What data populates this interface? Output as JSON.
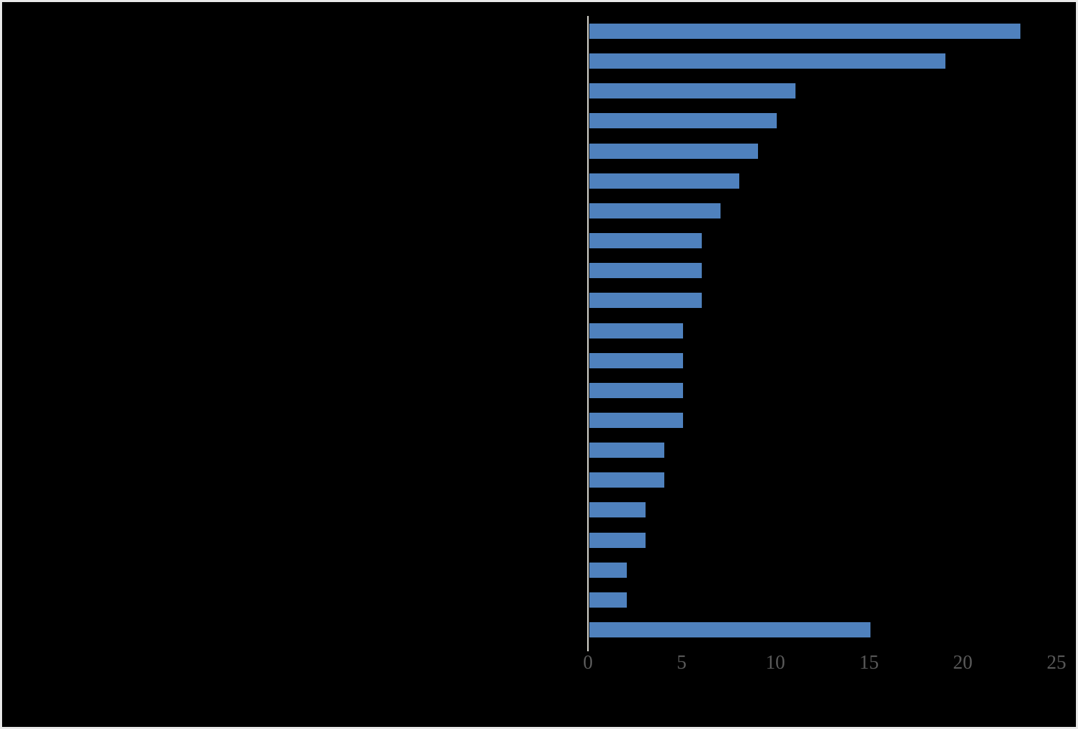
{
  "chart_data": {
    "type": "bar",
    "orientation": "horizontal",
    "values": [
      23,
      19,
      11,
      10,
      9,
      8,
      7,
      6,
      6,
      6,
      5,
      5,
      5,
      5,
      4,
      4,
      3,
      3,
      2,
      2,
      15
    ],
    "categories": [
      "",
      "",
      "",
      "",
      "",
      "",
      "",
      "",
      "",
      "",
      "",
      "",
      "",
      "",
      "",
      "",
      "",
      "",
      "",
      "",
      ""
    ],
    "categories_note": "category labels not visible (black-on-black background)",
    "xlim": [
      0,
      25
    ],
    "xticks": [
      0,
      5,
      10,
      15,
      20,
      25
    ],
    "grid": false,
    "legend": false,
    "bar_color": "#4F81BD",
    "axis_line_color": "#DCDAD2",
    "tick_label_color": "#5A5A5A",
    "background_color": "#000000",
    "frame_border_color": "#E9E9E9"
  }
}
